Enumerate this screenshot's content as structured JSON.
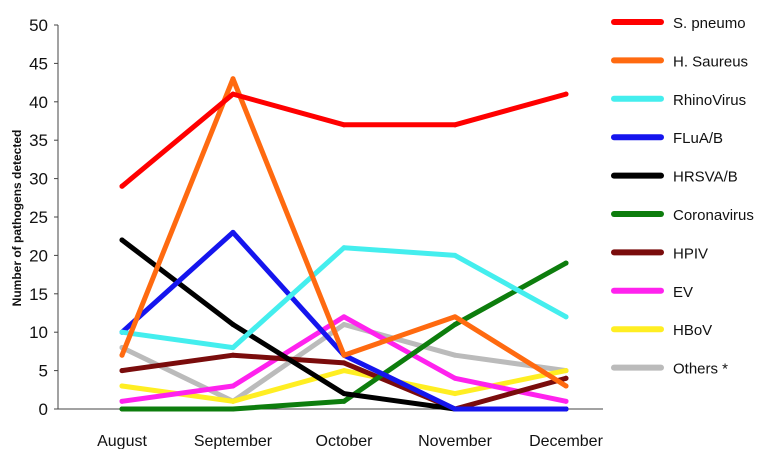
{
  "chart_data": {
    "type": "line",
    "title": "",
    "xlabel": "",
    "ylabel": "Number of pathogens detected",
    "categories": [
      "August",
      "September",
      "October",
      "November",
      "December"
    ],
    "ylim": [
      0,
      50
    ],
    "yticks": [
      0,
      5,
      10,
      15,
      20,
      25,
      30,
      35,
      40,
      45,
      50
    ],
    "grid": false,
    "legend_position": "right",
    "series": [
      {
        "name": "S. pneumo",
        "color": "#ff0000",
        "values": [
          29,
          41,
          37,
          37,
          41
        ]
      },
      {
        "name": "H. Saureus",
        "color": "#ff6a10",
        "values": [
          7,
          43,
          7,
          12,
          3
        ]
      },
      {
        "name": "RhinoVirus",
        "color": "#44eeee",
        "values": [
          10,
          8,
          21,
          20,
          12
        ]
      },
      {
        "name": "FLuA/B",
        "color": "#1515ee",
        "values": [
          10,
          23,
          7,
          0,
          0
        ]
      },
      {
        "name": "HRSVA/B",
        "color": "#000000",
        "values": [
          22,
          11,
          2,
          0,
          0
        ]
      },
      {
        "name": "Coronavirus",
        "color": "#0d7d0d",
        "values": [
          0,
          0,
          1,
          11,
          19
        ]
      },
      {
        "name": "HPIV",
        "color": "#7a0c0c",
        "values": [
          5,
          7,
          6,
          0,
          4
        ]
      },
      {
        "name": "EV",
        "color": "#ff22ee",
        "values": [
          1,
          3,
          12,
          4,
          1
        ]
      },
      {
        "name": "HBoV",
        "color": "#ffee22",
        "values": [
          3,
          1,
          5,
          2,
          5
        ]
      },
      {
        "name": "Others *",
        "color": "#bbbbbb",
        "values": [
          8,
          1,
          11,
          7,
          5
        ]
      }
    ]
  }
}
